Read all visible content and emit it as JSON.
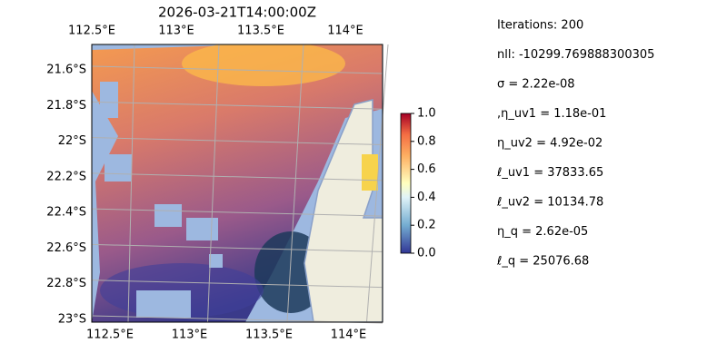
{
  "map_data": {
    "title": "2026-03-21T14:00:00Z",
    "lon_ticks_top": [
      {
        "value": 112.5,
        "label": "112.5°E"
      },
      {
        "value": 113,
        "label": "113°E"
      },
      {
        "value": 113.5,
        "label": "113.5°E"
      },
      {
        "value": 114,
        "label": "114°E"
      }
    ],
    "lon_ticks_bottom": [
      {
        "value": 112.5,
        "label": "112.5°E"
      },
      {
        "value": 113,
        "label": "113°E"
      },
      {
        "value": 113.5,
        "label": "113.5°E"
      },
      {
        "value": 114,
        "label": "114°E"
      }
    ],
    "lat_ticks": [
      {
        "value": -21.6,
        "label": "21.6°S"
      },
      {
        "value": -21.8,
        "label": "21.8°S"
      },
      {
        "value": -22,
        "label": "22°S"
      },
      {
        "value": -22.2,
        "label": "22.2°S"
      },
      {
        "value": -22.4,
        "label": "22.4°S"
      },
      {
        "value": -22.6,
        "label": "22.6°S"
      },
      {
        "value": -22.8,
        "label": "22.8°S"
      },
      {
        "value": -23,
        "label": "23°S"
      }
    ],
    "colorbar": {
      "range": [
        0,
        1
      ],
      "ticks": [
        {
          "value": 0,
          "label": "0.0"
        },
        {
          "value": 0.2,
          "label": "0.2"
        },
        {
          "value": 0.4,
          "label": "0.4"
        },
        {
          "value": 0.6,
          "label": "0.6"
        },
        {
          "value": 0.8,
          "label": "0.8"
        },
        {
          "value": 1,
          "label": "1.0"
        }
      ]
    },
    "annotations": [
      "Iterations: 200",
      "nll: -10299.769888300305",
      "σ = 2.22e-08",
      ",η_uv1 = 1.18e-01",
      "η_uv2 = 4.92e-02",
      "ℓ_uv1 = 37833.65",
      "ℓ_uv2 = 10134.78",
      "η_q = 2.62e-05",
      "ℓ_q = 25076.68"
    ]
  }
}
